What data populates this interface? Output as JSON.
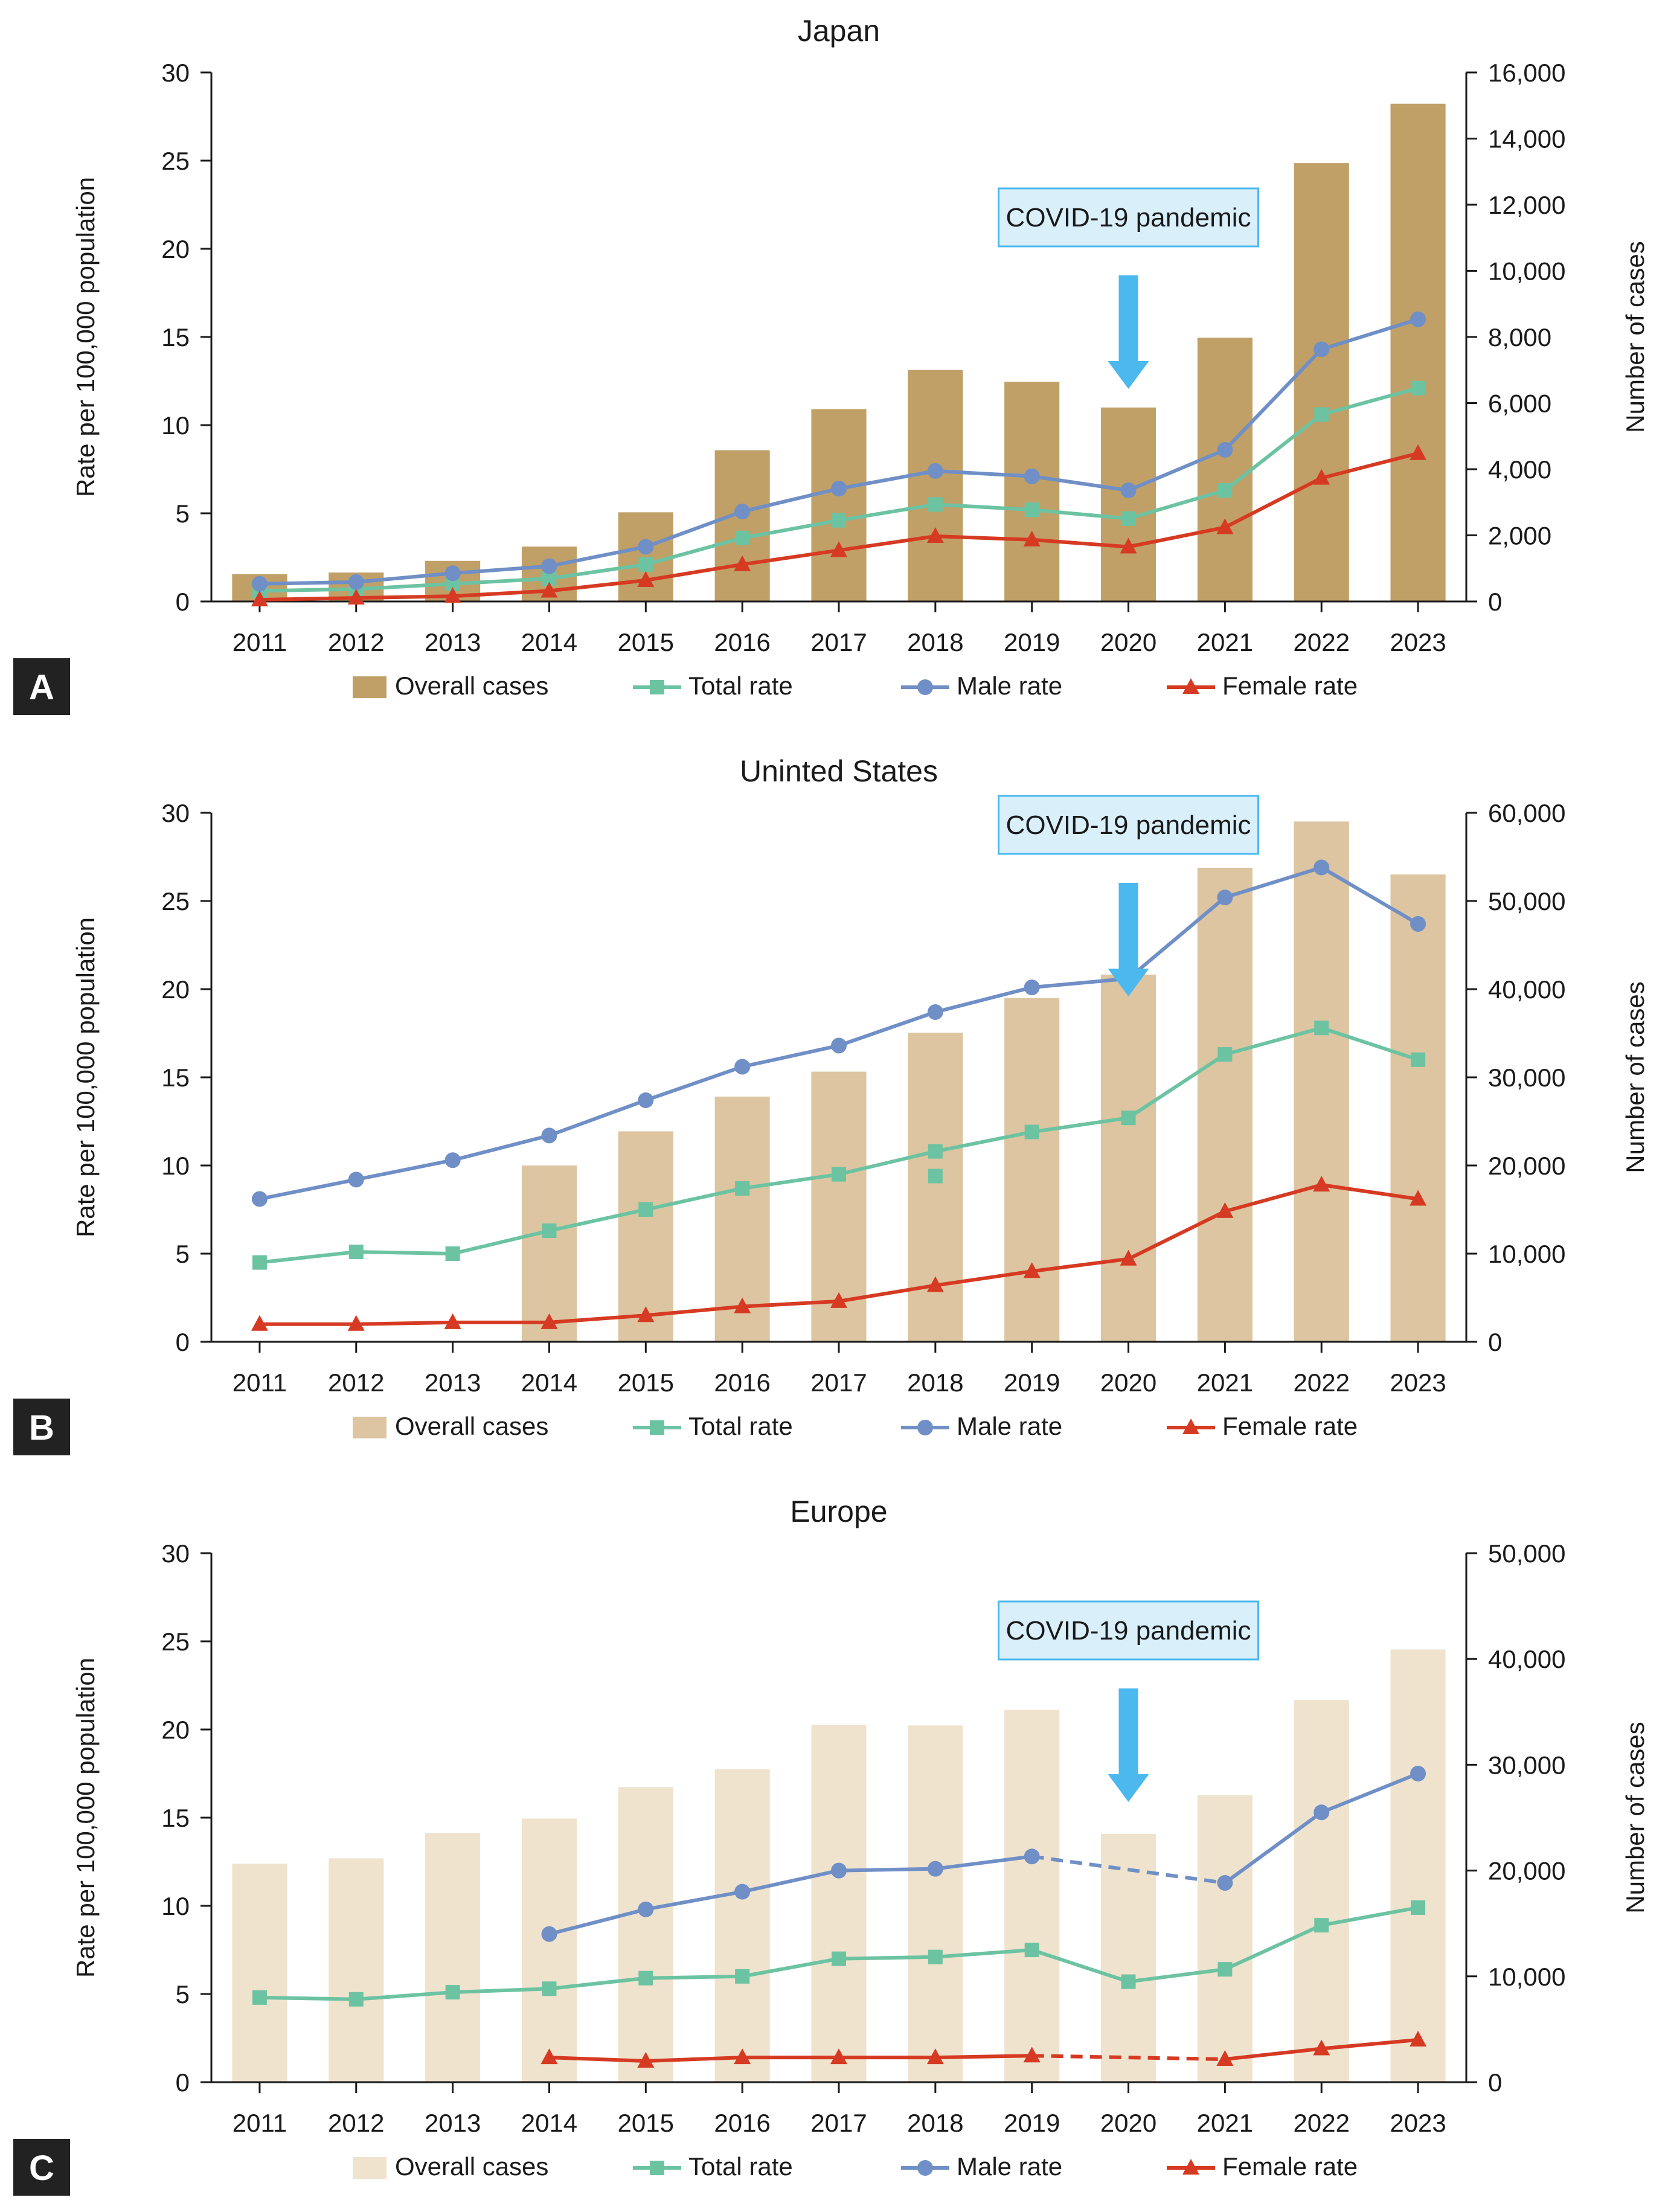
{
  "colors": {
    "total": "#6cc3a2",
    "male": "#6f8fc6",
    "female": "#d63a22",
    "arrow": "#4bb8ee",
    "covid_box_fill": "#d9f0fb",
    "covid_box_stroke": "#4bb8ee",
    "axis": "#1a1a1a",
    "panel_label_bg": "#222222"
  },
  "legend": [
    "Overall cases",
    "Total rate",
    "Male rate",
    "Female rate"
  ],
  "covid_label": "COVID-19 pandemic",
  "chart_data": [
    {
      "type": "bar",
      "panel_label": "A",
      "title": "Japan",
      "categories": [
        "2011",
        "2012",
        "2013",
        "2014",
        "2015",
        "2016",
        "2017",
        "2018",
        "2019",
        "2020",
        "2021",
        "2022",
        "2023"
      ],
      "ylabel": "Rate per 100,000 population",
      "y2label": "Number of cases",
      "ylim": [
        0,
        30
      ],
      "yticks": [
        0,
        5,
        10,
        15,
        20,
        25,
        30
      ],
      "y2lim": [
        0,
        16000
      ],
      "y2ticks": [
        "0",
        "2,000",
        "4,000",
        "6,000",
        "8,000",
        "10,000",
        "12,000",
        "14,000",
        "16,000"
      ],
      "bar_color": "#c0a067",
      "covid_year": "2020",
      "series": [
        {
          "name": "Overall cases",
          "axis": "right",
          "kind": "bar",
          "values": [
            827,
            875,
            1228,
            1661,
            2697,
            4575,
            5820,
            7001,
            6642,
            5867,
            7978,
            13258,
            15055
          ]
        },
        {
          "name": "Total rate",
          "axis": "left",
          "kind": "line",
          "marker": "square",
          "values": [
            0.6,
            0.7,
            1.0,
            1.3,
            2.1,
            3.6,
            4.6,
            5.5,
            5.2,
            4.7,
            6.3,
            10.6,
            12.1
          ]
        },
        {
          "name": "Male rate",
          "axis": "left",
          "kind": "line",
          "marker": "circle",
          "values": [
            1.0,
            1.1,
            1.6,
            2.0,
            3.1,
            5.1,
            6.4,
            7.4,
            7.1,
            6.3,
            8.6,
            14.3,
            16.0
          ]
        },
        {
          "name": "Female rate",
          "axis": "left",
          "kind": "line",
          "marker": "triangle",
          "values": [
            0.1,
            0.2,
            0.3,
            0.6,
            1.2,
            2.1,
            2.9,
            3.7,
            3.5,
            3.1,
            4.2,
            7.0,
            8.4
          ]
        }
      ]
    },
    {
      "type": "bar",
      "panel_label": "B",
      "title": "Uninted States",
      "categories": [
        "2011",
        "2012",
        "2013",
        "2014",
        "2015",
        "2016",
        "2017",
        "2018",
        "2019",
        "2020",
        "2021",
        "2022",
        "2023"
      ],
      "ylabel": "Rate per 100,000 population",
      "y2label": "Number of cases",
      "ylim": [
        0,
        30
      ],
      "yticks": [
        0,
        5,
        10,
        15,
        20,
        25,
        30
      ],
      "y2lim": [
        0,
        60000
      ],
      "y2ticks": [
        "0",
        "10,000",
        "20,000",
        "30,000",
        "40,000",
        "50,000",
        "60,000"
      ],
      "bar_color": "#dcc5a0",
      "covid_year": "2020",
      "series": [
        {
          "name": "Overall cases",
          "axis": "right",
          "kind": "bar",
          "values": [
            null,
            null,
            null,
            19999,
            23872,
            27814,
            30644,
            35063,
            38992,
            41655,
            53767,
            59016,
            53007
          ]
        },
        {
          "name": "Total rate",
          "axis": "left",
          "kind": "line",
          "marker": "square",
          "values": [
            4.5,
            5.1,
            5.0,
            6.3,
            7.5,
            8.7,
            9.5,
            10.8,
            11.9,
            12.7,
            16.3,
            17.8,
            16.0
          ],
          "detached_markers": [
            {
              "x": "2018",
              "y": 9.4
            }
          ]
        },
        {
          "name": "Male rate",
          "axis": "left",
          "kind": "line",
          "marker": "circle",
          "values": [
            8.1,
            9.2,
            10.3,
            11.7,
            13.7,
            15.6,
            16.8,
            18.7,
            20.1,
            20.6,
            25.2,
            26.9,
            23.7
          ]
        },
        {
          "name": "Female rate",
          "axis": "left",
          "kind": "line",
          "marker": "triangle",
          "values": [
            1.0,
            1.0,
            1.1,
            1.1,
            1.5,
            2.0,
            2.3,
            3.2,
            4.0,
            4.7,
            7.4,
            8.9,
            8.1
          ]
        }
      ]
    },
    {
      "type": "bar",
      "panel_label": "C",
      "title": "Europe",
      "categories": [
        "2011",
        "2012",
        "2013",
        "2014",
        "2015",
        "2016",
        "2017",
        "2018",
        "2019",
        "2020",
        "2021",
        "2022",
        "2023"
      ],
      "ylabel": "Rate per 100,000 population",
      "y2label": "Number of cases",
      "ylim": [
        0,
        30
      ],
      "yticks": [
        0,
        5,
        10,
        15,
        20,
        25,
        30
      ],
      "y2lim": [
        0,
        50000
      ],
      "y2ticks": [
        "0",
        "10,000",
        "20,000",
        "30,000",
        "40,000",
        "50,000"
      ],
      "bar_color": "#efe3ce",
      "covid_year": "2020",
      "series": [
        {
          "name": "Overall cases",
          "axis": "right",
          "kind": "bar",
          "values": [
            20641,
            21156,
            23563,
            24918,
            27893,
            29578,
            33756,
            33715,
            35186,
            23470,
            27127,
            36115,
            40900
          ]
        },
        {
          "name": "Total rate",
          "axis": "left",
          "kind": "line",
          "marker": "square",
          "values": [
            4.8,
            4.7,
            5.1,
            5.3,
            5.9,
            6.0,
            7.0,
            7.1,
            7.5,
            5.7,
            6.4,
            8.9,
            9.9
          ]
        },
        {
          "name": "Male rate",
          "axis": "left",
          "kind": "line",
          "marker": "circle",
          "values": [
            null,
            null,
            null,
            8.4,
            9.8,
            10.8,
            12.0,
            12.1,
            12.8,
            null,
            11.3,
            15.3,
            17.5
          ],
          "dashed_gap": true
        },
        {
          "name": "Female rate",
          "axis": "left",
          "kind": "line",
          "marker": "triangle",
          "values": [
            null,
            null,
            null,
            1.4,
            1.2,
            1.4,
            1.4,
            1.4,
            1.5,
            null,
            1.3,
            1.9,
            2.4
          ],
          "dashed_gap": true
        }
      ]
    }
  ]
}
